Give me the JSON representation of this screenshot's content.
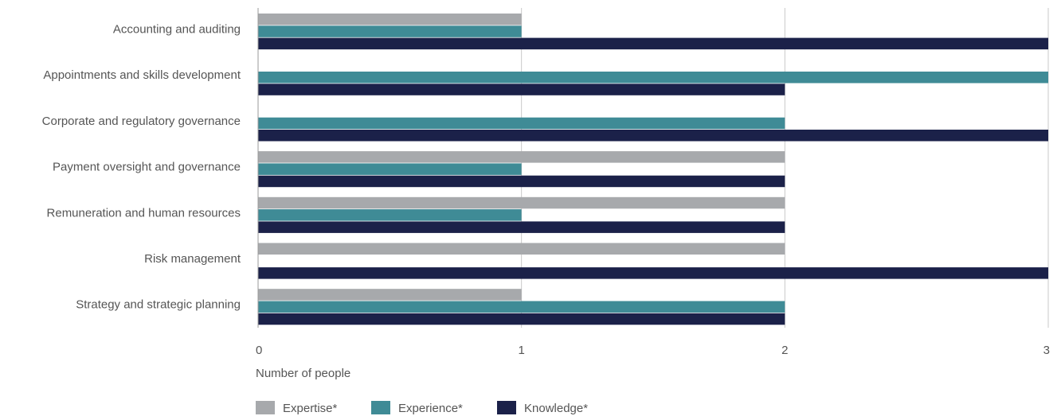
{
  "chart_data": {
    "type": "bar",
    "orientation": "horizontal",
    "categories": [
      "Accounting and auditing",
      "Appointments and skills development",
      "Corporate and regulatory governance",
      "Payment oversight and governance",
      "Remuneration and human resources",
      "Risk management",
      "Strategy and strategic planning"
    ],
    "series": [
      {
        "name": "Expertise*",
        "color": "#a7a9ac",
        "values": [
          1,
          0,
          0,
          2,
          2,
          2,
          1
        ]
      },
      {
        "name": "Experience*",
        "color": "#3f8b96",
        "values": [
          1,
          3,
          2,
          1,
          1,
          0,
          2
        ]
      },
      {
        "name": "Knowledge*",
        "color": "#1b2149",
        "values": [
          3,
          2,
          3,
          2,
          2,
          3,
          2
        ]
      }
    ],
    "xlabel": "Number of people",
    "xlim": [
      0,
      3
    ],
    "xticks": [
      "0",
      "1",
      "2",
      "3"
    ],
    "grid": true,
    "legend_position": "bottom-left"
  }
}
